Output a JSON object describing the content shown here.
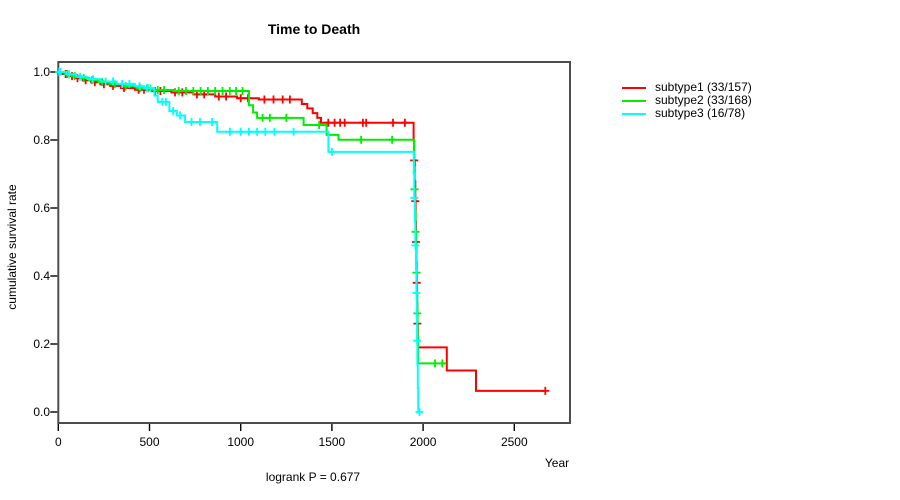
{
  "title": "Time to Death",
  "footer": {
    "logrank_text": "logrank P = 0.677"
  },
  "axes": {
    "x": {
      "label": "Year",
      "ticks": [
        {
          "v": 0,
          "label": "0"
        },
        {
          "v": 500,
          "label": "500"
        },
        {
          "v": 1000,
          "label": "1000"
        },
        {
          "v": 1500,
          "label": "1500"
        },
        {
          "v": 2000,
          "label": "2000"
        },
        {
          "v": 2500,
          "label": "2500"
        }
      ]
    },
    "y": {
      "label": "cumulative survival rate",
      "ticks": [
        {
          "v": 1.0,
          "label": "1.0"
        },
        {
          "v": 0.8,
          "label": "0.8"
        },
        {
          "v": 0.6,
          "label": "0.6"
        },
        {
          "v": 0.4,
          "label": "0.4"
        },
        {
          "v": 0.2,
          "label": "0.2"
        },
        {
          "v": 0.0,
          "label": "0.0"
        }
      ]
    }
  },
  "legend": [
    {
      "label": "subtype1 (33/157)",
      "color": "#ff0000"
    },
    {
      "label": "subtype2 (33/168)",
      "color": "#00ee00"
    },
    {
      "label": "subtype3 (16/78)",
      "color": "#00ffff"
    }
  ],
  "chart_data": {
    "type": "line",
    "subtype": "kaplan-meier-step",
    "title": "Time to Death",
    "xlabel": "Year",
    "ylabel": "cumulative survival rate",
    "xlim": [
      0,
      2800
    ],
    "ylim": [
      0.0,
      1.0
    ],
    "annotation": "logrank P = 0.677",
    "legend_position": "right",
    "grid": false,
    "series": [
      {
        "name": "subtype1",
        "legend_label": "subtype1 (33/157)",
        "color": "#ff0000",
        "steps": [
          [
            0,
            1.0
          ],
          [
            25,
            0.994
          ],
          [
            60,
            0.988
          ],
          [
            95,
            0.982
          ],
          [
            135,
            0.976
          ],
          [
            180,
            0.97
          ],
          [
            230,
            0.964
          ],
          [
            285,
            0.959
          ],
          [
            345,
            0.953
          ],
          [
            420,
            0.948
          ],
          [
            510,
            0.944
          ],
          [
            620,
            0.94
          ],
          [
            740,
            0.934
          ],
          [
            860,
            0.928
          ],
          [
            980,
            0.923
          ],
          [
            1100,
            0.919
          ],
          [
            1335,
            0.906
          ],
          [
            1365,
            0.893
          ],
          [
            1395,
            0.879
          ],
          [
            1420,
            0.865
          ],
          [
            1440,
            0.851
          ],
          [
            1948,
            0.8
          ],
          [
            1951,
            0.74
          ],
          [
            1954,
            0.68
          ],
          [
            1957,
            0.62
          ],
          [
            1959,
            0.56
          ],
          [
            1961,
            0.5
          ],
          [
            1963,
            0.44
          ],
          [
            1965,
            0.38
          ],
          [
            1967,
            0.32
          ],
          [
            1969,
            0.26
          ],
          [
            1971,
            0.19
          ],
          [
            2130,
            0.122
          ],
          [
            2290,
            0.062
          ],
          [
            2670,
            0.062
          ]
        ],
        "censors": [
          [
            8,
            1.0
          ],
          [
            40,
            0.994
          ],
          [
            75,
            0.988
          ],
          [
            105,
            0.982
          ],
          [
            150,
            0.976
          ],
          [
            200,
            0.97
          ],
          [
            250,
            0.964
          ],
          [
            300,
            0.959
          ],
          [
            360,
            0.953
          ],
          [
            440,
            0.948
          ],
          [
            470,
            0.948
          ],
          [
            530,
            0.944
          ],
          [
            560,
            0.944
          ],
          [
            640,
            0.94
          ],
          [
            680,
            0.94
          ],
          [
            760,
            0.934
          ],
          [
            800,
            0.934
          ],
          [
            880,
            0.928
          ],
          [
            920,
            0.928
          ],
          [
            1000,
            0.923
          ],
          [
            1040,
            0.923
          ],
          [
            1130,
            0.919
          ],
          [
            1180,
            0.919
          ],
          [
            1230,
            0.919
          ],
          [
            1270,
            0.919
          ],
          [
            1480,
            0.851
          ],
          [
            1515,
            0.851
          ],
          [
            1545,
            0.851
          ],
          [
            1570,
            0.851
          ],
          [
            1670,
            0.851
          ],
          [
            1688,
            0.851
          ],
          [
            1835,
            0.851
          ],
          [
            1900,
            0.851
          ],
          [
            1951,
            0.74
          ],
          [
            1957,
            0.62
          ],
          [
            1961,
            0.5
          ],
          [
            1965,
            0.38
          ],
          [
            1969,
            0.26
          ],
          [
            2670,
            0.062
          ]
        ]
      },
      {
        "name": "subtype2",
        "legend_label": "subtype2 (33/168)",
        "color": "#00ee00",
        "steps": [
          [
            0,
            1.0
          ],
          [
            35,
            0.994
          ],
          [
            80,
            0.988
          ],
          [
            125,
            0.982
          ],
          [
            170,
            0.976
          ],
          [
            220,
            0.97
          ],
          [
            280,
            0.964
          ],
          [
            350,
            0.958
          ],
          [
            430,
            0.952
          ],
          [
            520,
            0.947
          ],
          [
            640,
            0.944
          ],
          [
            1045,
            0.902
          ],
          [
            1068,
            0.881
          ],
          [
            1090,
            0.865
          ],
          [
            1345,
            0.844
          ],
          [
            1471,
            0.815
          ],
          [
            1536,
            0.801
          ],
          [
            1950,
            0.72
          ],
          [
            1953,
            0.655
          ],
          [
            1956,
            0.59
          ],
          [
            1959,
            0.53
          ],
          [
            1962,
            0.47
          ],
          [
            1964,
            0.41
          ],
          [
            1966,
            0.35
          ],
          [
            1968,
            0.29
          ],
          [
            1970,
            0.22
          ],
          [
            1972,
            0.143
          ],
          [
            2125,
            0.143
          ]
        ],
        "censors": [
          [
            6,
            1.0
          ],
          [
            50,
            0.994
          ],
          [
            90,
            0.988
          ],
          [
            140,
            0.982
          ],
          [
            185,
            0.976
          ],
          [
            240,
            0.97
          ],
          [
            310,
            0.964
          ],
          [
            370,
            0.958
          ],
          [
            450,
            0.952
          ],
          [
            490,
            0.952
          ],
          [
            545,
            0.947
          ],
          [
            580,
            0.947
          ],
          [
            660,
            0.944
          ],
          [
            700,
            0.944
          ],
          [
            740,
            0.944
          ],
          [
            780,
            0.944
          ],
          [
            820,
            0.944
          ],
          [
            860,
            0.944
          ],
          [
            900,
            0.944
          ],
          [
            940,
            0.944
          ],
          [
            975,
            0.944
          ],
          [
            1010,
            0.944
          ],
          [
            1120,
            0.865
          ],
          [
            1160,
            0.865
          ],
          [
            1250,
            0.865
          ],
          [
            1430,
            0.844
          ],
          [
            1660,
            0.801
          ],
          [
            1830,
            0.801
          ],
          [
            1953,
            0.655
          ],
          [
            1959,
            0.53
          ],
          [
            1964,
            0.41
          ],
          [
            1968,
            0.29
          ],
          [
            2065,
            0.143
          ],
          [
            2105,
            0.143
          ]
        ]
      },
      {
        "name": "subtype3",
        "legend_label": "subtype3 (16/78)",
        "color": "#00ffff",
        "steps": [
          [
            0,
            1.0
          ],
          [
            45,
            0.993
          ],
          [
            100,
            0.986
          ],
          [
            160,
            0.979
          ],
          [
            230,
            0.972
          ],
          [
            320,
            0.965
          ],
          [
            420,
            0.958
          ],
          [
            470,
            0.952
          ],
          [
            527,
            0.931
          ],
          [
            545,
            0.912
          ],
          [
            609,
            0.885
          ],
          [
            650,
            0.872
          ],
          [
            695,
            0.853
          ],
          [
            871,
            0.824
          ],
          [
            1481,
            0.765
          ],
          [
            1949,
            0.7
          ],
          [
            1952,
            0.63
          ],
          [
            1955,
            0.56
          ],
          [
            1958,
            0.49
          ],
          [
            1961,
            0.42
          ],
          [
            1963,
            0.35
          ],
          [
            1965,
            0.28
          ],
          [
            1967,
            0.21
          ],
          [
            1969,
            0.14
          ],
          [
            1971,
            0.07
          ],
          [
            1973,
            0.0
          ],
          [
            1980,
            0.0
          ]
        ],
        "censors": [
          [
            5,
            1.0
          ],
          [
            12,
            1.0
          ],
          [
            60,
            0.993
          ],
          [
            120,
            0.986
          ],
          [
            190,
            0.979
          ],
          [
            260,
            0.972
          ],
          [
            300,
            0.972
          ],
          [
            350,
            0.965
          ],
          [
            390,
            0.965
          ],
          [
            445,
            0.958
          ],
          [
            485,
            0.952
          ],
          [
            505,
            0.952
          ],
          [
            570,
            0.912
          ],
          [
            590,
            0.912
          ],
          [
            630,
            0.885
          ],
          [
            668,
            0.872
          ],
          [
            730,
            0.853
          ],
          [
            777,
            0.853
          ],
          [
            843,
            0.853
          ],
          [
            941,
            0.824
          ],
          [
            1000,
            0.824
          ],
          [
            1045,
            0.824
          ],
          [
            1090,
            0.824
          ],
          [
            1135,
            0.824
          ],
          [
            1185,
            0.824
          ],
          [
            1290,
            0.824
          ],
          [
            1500,
            0.765
          ],
          [
            1952,
            0.63
          ],
          [
            1958,
            0.49
          ],
          [
            1963,
            0.35
          ],
          [
            1967,
            0.21
          ],
          [
            1980,
            0.0
          ]
        ]
      }
    ]
  }
}
